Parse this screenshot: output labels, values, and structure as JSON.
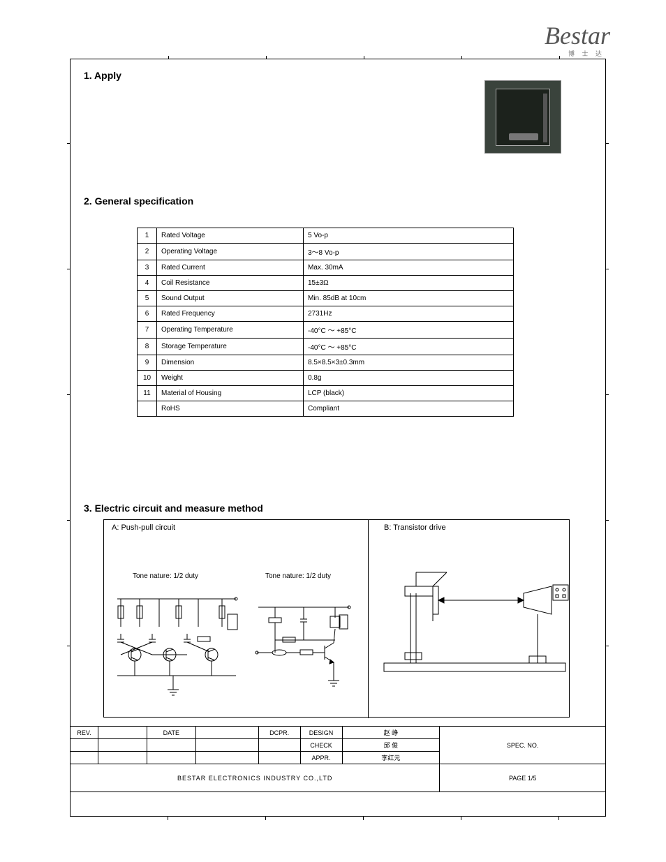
{
  "logo_text": "Bestar",
  "logo_sub": "博 士 达",
  "headings": {
    "apply": "1. Apply",
    "general": "2. General specification",
    "electric": "3. Electric circuit and measure method"
  },
  "spec": {
    "rows": [
      {
        "n": "1",
        "param": "Rated Voltage",
        "value": "5 Vo-p"
      },
      {
        "n": "2",
        "param": "Operating Voltage",
        "value": "3～8 Vo-p"
      },
      {
        "n": "3",
        "param": "Rated Current",
        "value": "Max. 30mA"
      },
      {
        "n": "4",
        "param": "Coil Resistance",
        "value": "15±3Ω"
      },
      {
        "n": "5",
        "param": "Sound Output",
        "value": "Min. 85dB at 10cm"
      },
      {
        "n": "6",
        "param": "Rated Frequency",
        "value": "2731Hz"
      },
      {
        "n": "7",
        "param": "Operating Temperature",
        "value": "-40°C ～ +85°C"
      },
      {
        "n": "8",
        "param": "Storage Temperature",
        "value": "-40°C ～ +85°C"
      },
      {
        "n": "9",
        "param": "Dimension",
        "value": "8.5×8.5×3±0.3mm"
      },
      {
        "n": "10",
        "param": "Weight",
        "value": "0.8g"
      },
      {
        "n": "11",
        "param": "Material of Housing",
        "value": "LCP (black)"
      },
      {
        "n": "",
        "param": "RoHS",
        "value": "Compliant"
      }
    ]
  },
  "circuit_labels": {
    "a": "A: Push-pull circuit",
    "b": "B: Transistor drive",
    "tone_a": "Tone nature: 1/2 duty",
    "tone_b": "Tone nature: 1/2 duty"
  },
  "titleblock": {
    "row1": [
      "REV.",
      "",
      "DATE",
      "",
      "DCPR.",
      "DESIGN",
      "赵 峥",
      "SPEC. NO."
    ],
    "row2": [
      "",
      "",
      "",
      "",
      "",
      "CHECK",
      "邱 俊",
      ""
    ],
    "row3": [
      "",
      "",
      "",
      "",
      "",
      "APPR.",
      "李红元",
      ""
    ],
    "company": "BESTAR ELECTRONICS INDUSTRY CO.,LTD",
    "page_lbl": "PAGE",
    "page_val": "1/5"
  },
  "colors": {
    "border": "#000000",
    "bg": "#ffffff",
    "photo_bg": "#3a433c",
    "chip": "#1c221c"
  }
}
